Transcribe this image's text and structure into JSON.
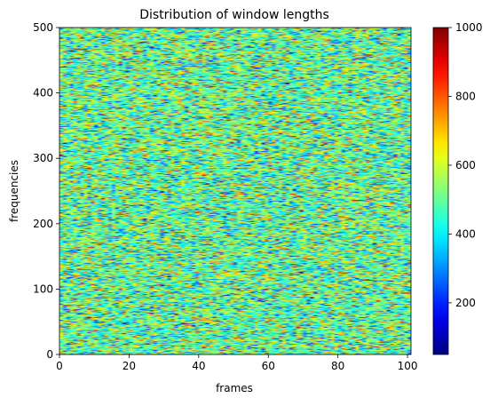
{
  "chart_data": {
    "type": "heatmap",
    "title": "Distribution of window lengths",
    "xlabel": "frames",
    "ylabel": "frequencies",
    "xlim": [
      0,
      101
    ],
    "ylim": [
      0,
      500
    ],
    "n_frames": 101,
    "n_frequencies": 500,
    "x_ticks": [
      0,
      20,
      40,
      60,
      80,
      100
    ],
    "x_tick_labels": [
      "0",
      "20",
      "40",
      "60",
      "80",
      "100"
    ],
    "y_ticks": [
      0,
      100,
      200,
      300,
      400,
      500
    ],
    "y_tick_labels": [
      "0",
      "100",
      "200",
      "300",
      "400",
      "500"
    ],
    "colorbar": {
      "colormap": "jet",
      "vmin": 50,
      "vmax": 1000,
      "ticks": [
        200,
        400,
        600,
        800,
        1000
      ],
      "tick_labels": [
        "200",
        "400",
        "600",
        "800",
        "1000"
      ]
    },
    "value_distribution": {
      "description_of_values": "approximately normal random values",
      "mean": 500,
      "std": 150,
      "min": 50,
      "max": 1000
    },
    "grid": false
  }
}
